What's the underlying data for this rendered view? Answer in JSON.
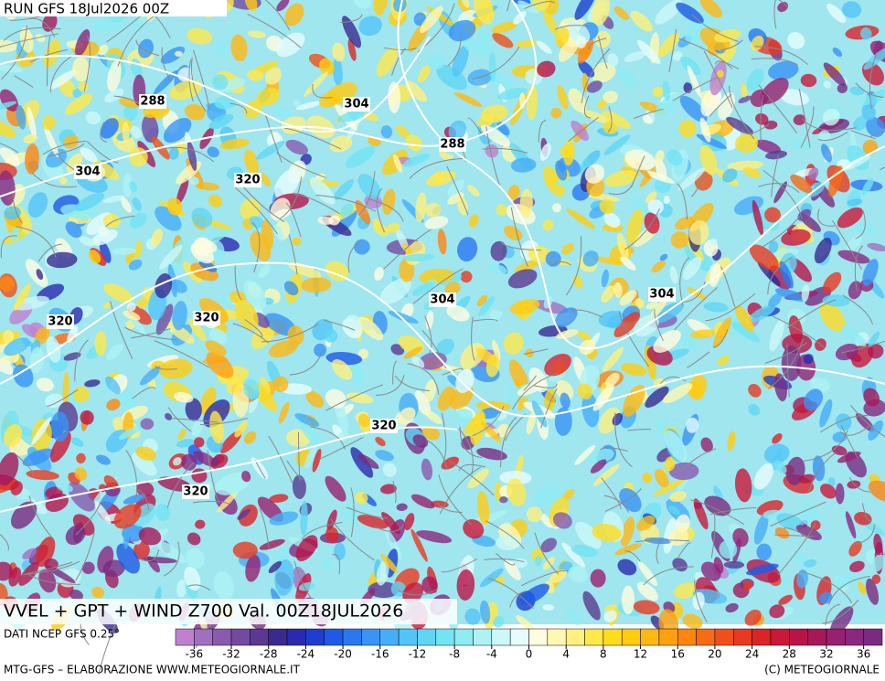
{
  "header": {
    "run": "RUN GFS 18Jul2026 00Z"
  },
  "map": {
    "contour_labels": [
      288,
      304,
      288,
      304,
      320,
      320,
      320,
      304,
      304,
      320,
      320
    ]
  },
  "footer": {
    "title": "VVEL + GPT + WIND Z700 Val. 00Z18JUL2026",
    "source": "DATI NCEP GFS 0.25°",
    "credit": "MTG-GFS – ELABORAZIONE WWW.METEOGIORNALE.IT",
    "copyright": "(C) METEOGIORNALE"
  },
  "colorbar": {
    "range": [
      -38,
      38
    ],
    "ticks": [
      -36,
      -32,
      -28,
      -24,
      -20,
      -16,
      -12,
      -8,
      -4,
      0,
      4,
      8,
      12,
      16,
      20,
      24,
      28,
      32,
      36
    ],
    "colors": [
      "#c080d0",
      "#a070c0",
      "#8a5ab0",
      "#744aa0",
      "#5a3a90",
      "#3a2a90",
      "#2a2ab0",
      "#1e3ed0",
      "#1e5ae6",
      "#2a78f0",
      "#3a94f5",
      "#46aef8",
      "#52c4f8",
      "#60d6f4",
      "#72e4f2",
      "#8eecf2",
      "#aef2f4",
      "#ccf8f8",
      "#e6fcfc",
      "#fffde0",
      "#fff8b0",
      "#fff080",
      "#ffe84a",
      "#ffdc20",
      "#ffcc10",
      "#ffb810",
      "#ffa010",
      "#ff8410",
      "#f86a14",
      "#f05018",
      "#e83a20",
      "#dc2428",
      "#cc1838",
      "#b81448",
      "#a81858",
      "#982070",
      "#8a2880",
      "#7a2a80"
    ]
  }
}
